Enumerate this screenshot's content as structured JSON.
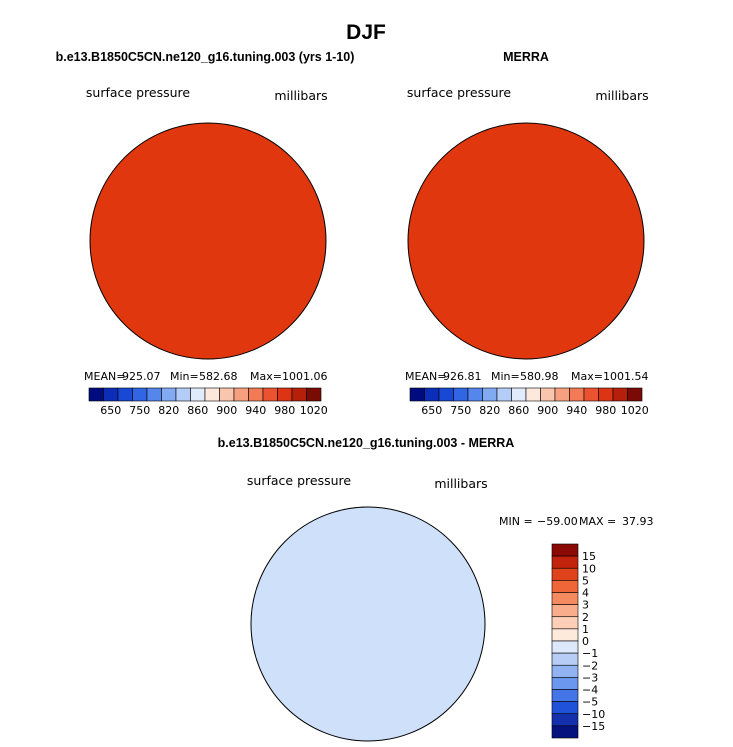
{
  "chart_data": [
    {
      "type": "map",
      "panel": "model",
      "season_title": "DJF",
      "title": "b.e13.B1850C5CN.ne120_g16.tuning.003 (yrs 1-10)",
      "left_label": "surface pressure",
      "right_label": "millibars",
      "stats": {
        "mean_label": "MEAN=",
        "mean": "925.07",
        "min_label": "Min=",
        "min": "582.68",
        "max_label": "Max=",
        "max": "1001.06"
      },
      "colorbar": {
        "tick_labels": [
          "650",
          "750",
          "820",
          "860",
          "900",
          "940",
          "980",
          "1020"
        ],
        "colors": [
          "#000b7f",
          "#0b2db7",
          "#1848d4",
          "#3165e3",
          "#5486ec",
          "#82aaf3",
          "#b4cdf8",
          "#e0ebfc",
          "#fde8dc",
          "#fac5ad",
          "#f7a07f",
          "#f27a55",
          "#eb5330",
          "#dd3514",
          "#b6200a",
          "#7a0a04"
        ]
      }
    },
    {
      "type": "map",
      "panel": "obs",
      "title": "MERRA",
      "left_label": "surface pressure",
      "right_label": "millibars",
      "stats": {
        "mean_label": "MEAN=",
        "mean": "926.81",
        "min_label": "Min=",
        "min": "580.98",
        "max_label": "Max=",
        "max": "1001.54"
      },
      "colorbar": {
        "tick_labels": [
          "650",
          "750",
          "820",
          "860",
          "900",
          "940",
          "980",
          "1020"
        ],
        "colors": [
          "#000b7f",
          "#0b2db7",
          "#1848d4",
          "#3165e3",
          "#5486ec",
          "#82aaf3",
          "#b4cdf8",
          "#e0ebfc",
          "#fde8dc",
          "#fac5ad",
          "#f7a07f",
          "#f27a55",
          "#eb5330",
          "#dd3514",
          "#b6200a",
          "#7a0a04"
        ]
      }
    },
    {
      "type": "map",
      "panel": "difference",
      "title": "b.e13.B1850C5CN.ne120_g16.tuning.003 - MERRA",
      "left_label": "surface pressure",
      "right_label": "millibars",
      "stats": {
        "min_label": "MIN =",
        "min": "−59.00",
        "max_label": "MAX =",
        "max": "37.93"
      },
      "colorbar": {
        "tick_labels": [
          "15",
          "10",
          "5",
          "4",
          "3",
          "2",
          "1",
          "0",
          "−1",
          "−2",
          "−3",
          "−4",
          "−5",
          "−10",
          "−15"
        ],
        "colors": [
          "#8b0a05",
          "#c2230c",
          "#e0431c",
          "#ef6638",
          "#f58a60",
          "#f9ad8b",
          "#fccfb6",
          "#fdeadb",
          "#dde8fb",
          "#b7cdf6",
          "#91b3f2",
          "#6b97ee",
          "#4475e6",
          "#1f52d9",
          "#1530ad",
          "#06127e"
        ]
      }
    }
  ]
}
